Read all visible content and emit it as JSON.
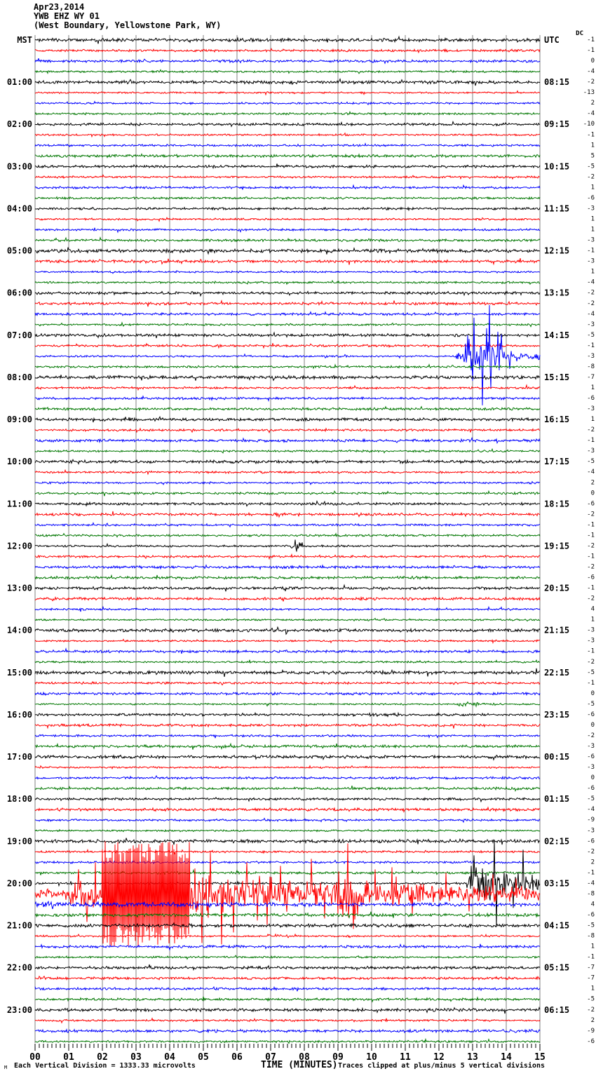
{
  "title": {
    "date": "Apr23,2014",
    "station": "YWB EHZ WY 01",
    "location": "(West Boundary, Yellowstone Park, WY)"
  },
  "footer": {
    "scale_note": "Each Vertical Division = 1333.33 microvolts",
    "xlabel": "TIME (MINUTES)",
    "clip_note": "Traces clipped at plus/minus 5 vertical divisions",
    "corner_mark": "M"
  },
  "chart_data": {
    "type": "line",
    "subtype": "helicorder-seismogram",
    "title": "YWB EHZ WY 01 (West Boundary, Yellowstone Park, WY) Apr23,2014",
    "x_axis": {
      "label": "TIME (MINUTES)",
      "range_minutes": [
        0,
        15
      ],
      "tick_labels": [
        "00",
        "01",
        "02",
        "03",
        "04",
        "05",
        "06",
        "07",
        "08",
        "09",
        "10",
        "11",
        "12",
        "13",
        "14",
        "15"
      ],
      "grid": true
    },
    "minutes_per_row": 15,
    "rows_total": 96,
    "row_color_cycle": [
      "#000000",
      "#ff0000",
      "#0000ff",
      "#007700"
    ],
    "grid_color": "#808080",
    "left_header": "MST",
    "right_header": "UTC",
    "dc_header": "DC",
    "left_hour_labels": [
      "MST",
      "01:00",
      "02:00",
      "03:00",
      "04:00",
      "05:00",
      "06:00",
      "07:00",
      "08:00",
      "09:00",
      "10:00",
      "11:00",
      "12:00",
      "13:00",
      "14:00",
      "15:00",
      "16:00",
      "17:00",
      "18:00",
      "19:00",
      "20:00",
      "21:00",
      "22:00",
      "23:00"
    ],
    "right_hour_labels": [
      "UTC",
      "08:15",
      "09:15",
      "10:15",
      "11:15",
      "12:15",
      "13:15",
      "14:15",
      "15:15",
      "16:15",
      "17:15",
      "18:15",
      "19:15",
      "20:15",
      "21:15",
      "22:15",
      "23:15",
      "00:15",
      "01:15",
      "02:15",
      "03:15",
      "04:15",
      "05:15",
      "06:15"
    ],
    "dc_offsets": [
      -1,
      -1,
      0,
      -4,
      -2,
      -13,
      2,
      -4,
      -10,
      -1,
      1,
      5,
      -5,
      -2,
      1,
      -6,
      -3,
      1,
      1,
      -3,
      -1,
      -3,
      1,
      -4,
      -2,
      -2,
      -4,
      -3,
      -5,
      -1,
      -3,
      -8,
      -7,
      1,
      -6,
      -3,
      1,
      -2,
      -1,
      -3,
      -5,
      -4,
      2,
      0,
      -6,
      -2,
      -1,
      -1,
      -2,
      -1,
      -2,
      -6,
      -1,
      -2,
      4,
      1,
      -3,
      -3,
      -1,
      -2,
      -5,
      -1,
      0,
      -5,
      -6,
      0,
      -2,
      -3,
      -6,
      -3,
      0,
      -6,
      -5,
      -4,
      -9,
      -3,
      -6,
      -2,
      2,
      -1,
      -4,
      -8,
      4,
      -6,
      -5,
      -8,
      1,
      -1,
      -7,
      -7,
      1,
      -5,
      -2,
      2,
      -9,
      -6
    ],
    "clip_divisions": 5,
    "events": [
      {
        "row": 30,
        "time": "07:30 MST / 14:45 UTC",
        "note": "local earthquake, clipped spikes",
        "segments": [
          [
            0,
            12.5,
            1.5
          ],
          [
            12.5,
            12.72,
            6
          ],
          [
            12.72,
            13.9,
            26
          ],
          [
            13.9,
            14.45,
            9
          ],
          [
            14.45,
            15,
            5.5
          ]
        ],
        "spikes": [
          [
            12.85,
            30
          ],
          [
            13.0,
            -35
          ],
          [
            13.05,
            55
          ],
          [
            13.3,
            -70
          ],
          [
            13.42,
            40
          ],
          [
            13.5,
            73
          ],
          [
            13.55,
            -45
          ],
          [
            13.75,
            35
          ],
          [
            14.1,
            -18
          ]
        ]
      },
      {
        "row": 48,
        "time": "12:00 MST / 19:15 UTC",
        "note": "small blip",
        "segments": [
          [
            0,
            7.6,
            1.6
          ],
          [
            7.6,
            7.95,
            7
          ],
          [
            7.95,
            15,
            1.6
          ]
        ],
        "spikes": [
          [
            7.72,
            9
          ],
          [
            7.78,
            -8
          ]
        ]
      },
      {
        "row": 63,
        "time": "15:45 MST",
        "note": "small green burst",
        "segments": [
          [
            0,
            12.55,
            1.3
          ],
          [
            12.55,
            13.15,
            5
          ],
          [
            13.15,
            13.9,
            2.2
          ],
          [
            13.9,
            15,
            1.4
          ]
        ],
        "spikes": []
      },
      {
        "row": 64,
        "time": "16:00 MST / 23:15 UTC",
        "note": "slight fuzz",
        "segments": [
          [
            0,
            9.9,
            1.9
          ],
          [
            9.9,
            10.8,
            3.2
          ],
          [
            10.8,
            15,
            1.9
          ]
        ],
        "spikes": []
      },
      {
        "row": 80,
        "time": "20:00 MST / 03:15 UTC",
        "note": "event onset at ~min 13, continues to next row",
        "segments": [
          [
            0,
            12.8,
            1.7
          ],
          [
            12.8,
            13.05,
            14
          ],
          [
            13.05,
            13.6,
            30
          ],
          [
            13.6,
            14.6,
            19
          ],
          [
            14.6,
            15,
            15
          ]
        ],
        "spikes": [
          [
            12.95,
            25
          ],
          [
            13.05,
            40
          ],
          [
            13.65,
            62
          ],
          [
            13.7,
            -62
          ],
          [
            14.2,
            -35
          ],
          [
            14.5,
            48
          ]
        ]
      },
      {
        "row": 81,
        "time": "20:15 MST / 03:30 UTC",
        "note": "large clipped event, full row",
        "segments": [
          [
            0,
            0.9,
            8
          ],
          [
            0.9,
            2.0,
            22
          ],
          [
            2.0,
            4.6,
            75
          ],
          [
            4.6,
            5.6,
            40
          ],
          [
            5.6,
            7.6,
            26
          ],
          [
            7.6,
            9.0,
            20
          ],
          [
            9.0,
            9.7,
            40
          ],
          [
            9.7,
            11.5,
            20
          ],
          [
            11.5,
            13.2,
            15
          ],
          [
            13.2,
            15,
            13
          ]
        ],
        "spikes": [
          [
            1.3,
            35
          ],
          [
            1.55,
            -40
          ],
          [
            1.8,
            45
          ],
          [
            4.95,
            -70
          ],
          [
            5.2,
            60
          ],
          [
            5.55,
            -72
          ],
          [
            5.9,
            -55
          ],
          [
            6.3,
            45
          ],
          [
            6.6,
            -38
          ],
          [
            6.9,
            -45
          ],
          [
            7.3,
            40
          ],
          [
            8.2,
            50
          ],
          [
            8.6,
            -35
          ],
          [
            9.3,
            72
          ],
          [
            9.45,
            -50
          ],
          [
            10.1,
            35
          ],
          [
            10.6,
            38
          ],
          [
            11.2,
            -30
          ],
          [
            12.2,
            30
          ],
          [
            12.9,
            -25
          ],
          [
            13.6,
            28
          ],
          [
            14.3,
            22
          ]
        ]
      },
      {
        "row": 82,
        "time": "20:30 MST",
        "note": "elevated coda",
        "segments": [
          [
            0,
            6,
            4
          ],
          [
            6,
            15,
            3
          ]
        ],
        "spikes": []
      },
      {
        "row": 83,
        "time": "20:45 MST",
        "note": "elevated coda",
        "segments": [
          [
            0,
            15,
            2.6
          ]
        ],
        "spikes": []
      },
      {
        "row": 85,
        "time": "21:15 MST",
        "note": "slight bump",
        "segments": [
          [
            0,
            6.9,
            1.4
          ],
          [
            6.9,
            7.6,
            3
          ],
          [
            7.6,
            15,
            1.4
          ]
        ],
        "spikes": []
      }
    ]
  }
}
